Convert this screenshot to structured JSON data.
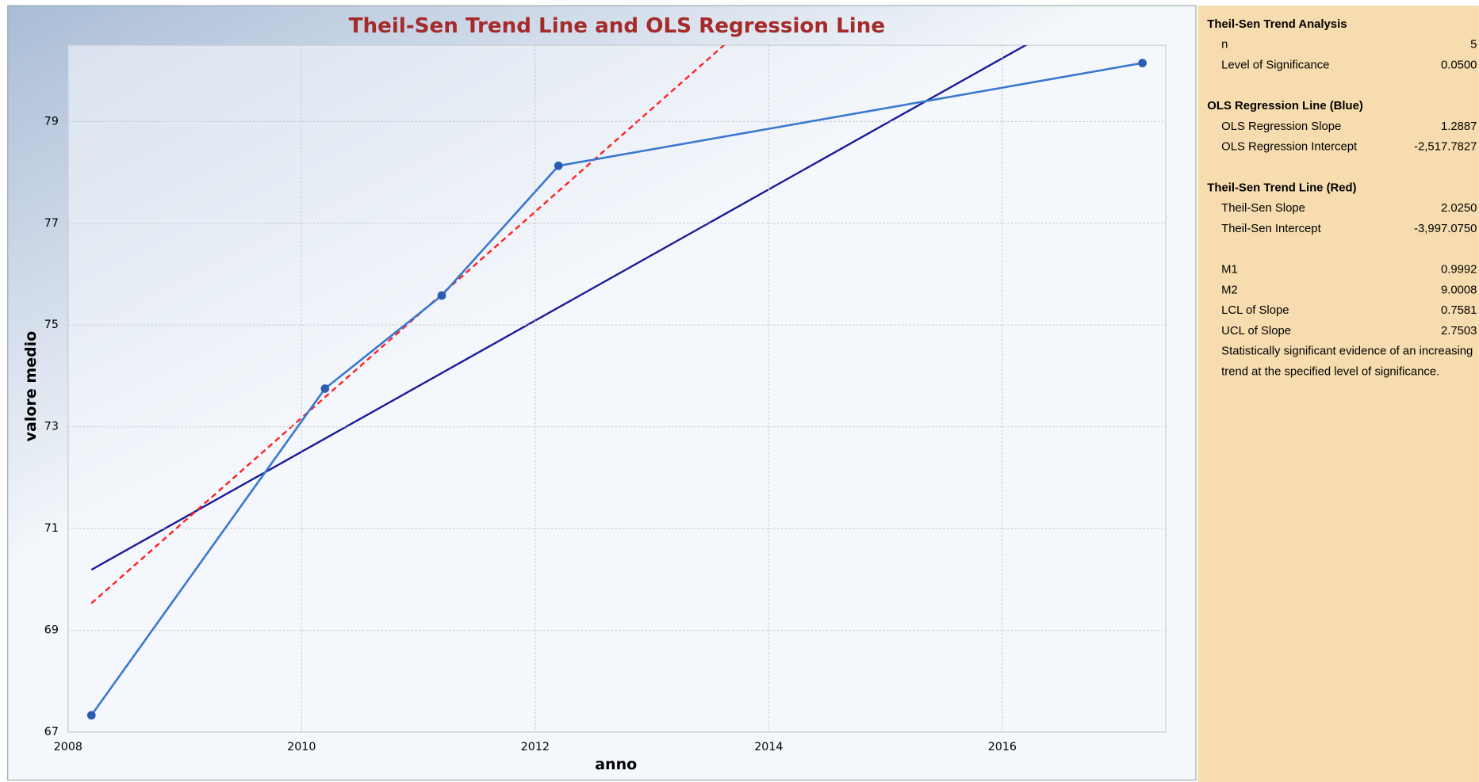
{
  "chart_data": {
    "type": "line",
    "title": "Theil-Sen Trend Line and OLS Regression Line",
    "xlabel": "anno",
    "ylabel": "valore medio",
    "x": [
      2008.2,
      2010.2,
      2011.2,
      2012.2,
      2017.2
    ],
    "series": [
      {
        "color": "#3a78d0",
        "values": [
          67.33,
          73.75,
          75.58,
          78.13,
          80.15
        ]
      }
    ],
    "lines": [
      {
        "color": "#1a1a9a",
        "dashed": false,
        "x": [
          2008.2,
          2017.2
        ],
        "values": [
          70.19,
          81.79
        ]
      },
      {
        "color": "#ff2020",
        "dashed": true,
        "x": [
          2008.2,
          2017.2
        ],
        "values": [
          69.53,
          87.76
        ]
      }
    ],
    "xlim": [
      2008,
      2017.4
    ],
    "xticks": [
      2008,
      2010,
      2012,
      2014,
      2016
    ],
    "ylim": [
      67,
      80.5
    ],
    "yticks": [
      67,
      69,
      71,
      73,
      75,
      77,
      79
    ],
    "grid": true
  },
  "panel": {
    "sections": [
      {
        "title": "Theil-Sen Trend Analysis",
        "rows": [
          [
            "n",
            "5"
          ],
          [
            "Level of Significance",
            "0.0500"
          ]
        ]
      },
      {
        "title": "OLS Regression Line (Blue)",
        "rows": [
          [
            "OLS Regression Slope",
            "1.2887"
          ],
          [
            "OLS Regression Intercept",
            "-2,517.7827"
          ]
        ]
      },
      {
        "title": "Theil-Sen Trend Line (Red)",
        "rows": [
          [
            "Theil-Sen Slope",
            "2.0250"
          ],
          [
            "Theil-Sen Intercept",
            "-3,997.0750"
          ]
        ]
      },
      {
        "rows": [
          [
            "M1",
            "0.9992"
          ],
          [
            "M2",
            "9.0008"
          ],
          [
            "LCL of Slope",
            "0.7581"
          ],
          [
            "UCL of Slope",
            "2.7503"
          ]
        ],
        "note": [
          "Statistically significant evidence of an increasing",
          "trend at the specified level of significance."
        ]
      }
    ]
  }
}
